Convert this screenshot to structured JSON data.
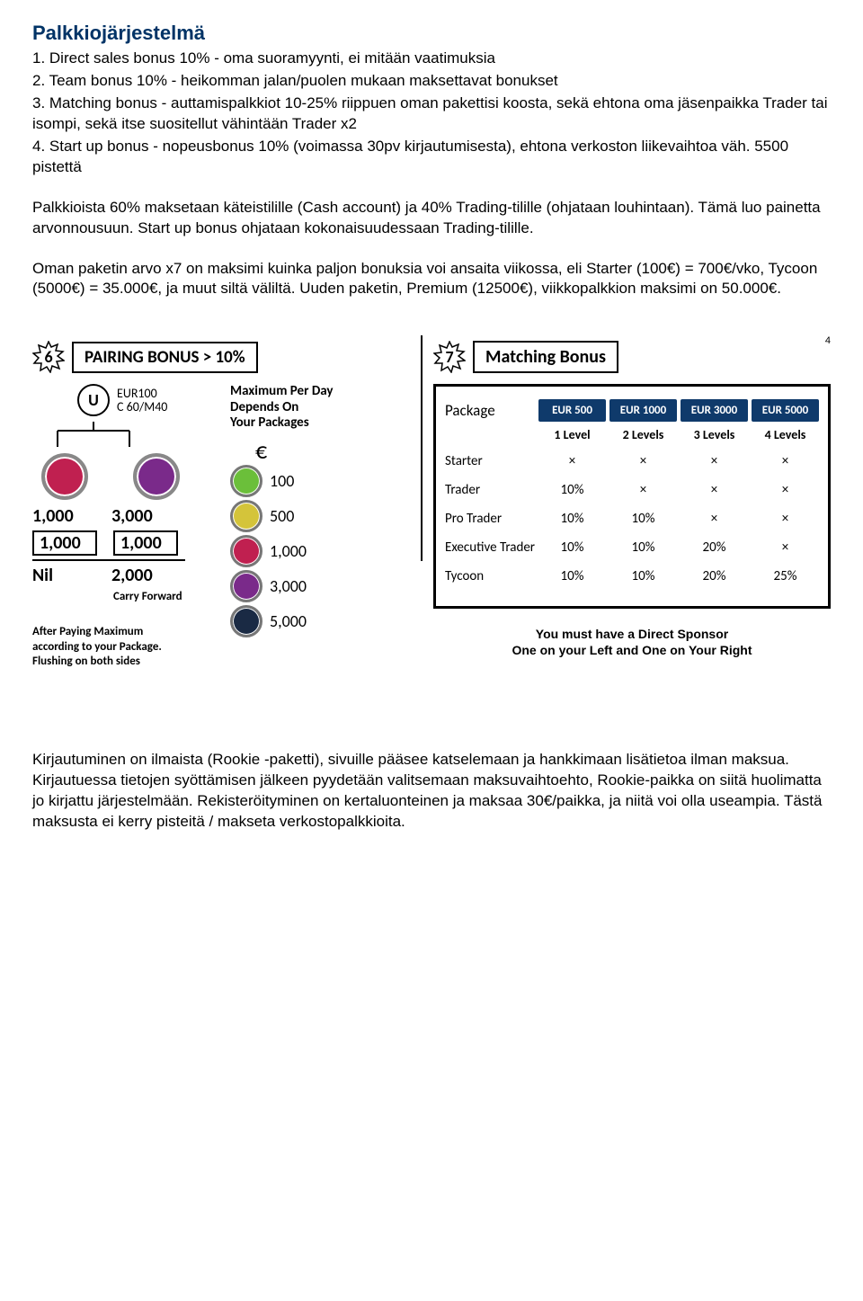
{
  "colors": {
    "accent": "#003366",
    "pill_bg": "#0f3a6b",
    "pill_fg": "#ffffff",
    "text": "#000000",
    "bg": "#ffffff",
    "coin_border": "#888888"
  },
  "title": "Palkkiojärjestelmä",
  "items": [
    "1. Direct sales bonus 10% - oma suoramyynti, ei mitään vaatimuksia",
    "2. Team bonus 10% - heikomman jalan/puolen mukaan maksettavat bonukset",
    "3. Matching bonus - auttamispalkkiot 10-25% riippuen oman pakettisi koosta, sekä ehtona oma jäsenpaikka Trader tai isompi, sekä itse suositellut vähintään Trader x2",
    "4. Start up bonus - nopeusbonus 10% (voimassa 30pv kirjautumisesta), ehtona verkoston liikevaihtoa väh. 5500 pistettä"
  ],
  "para1": "Palkkioista 60% maksetaan käteistilille (Cash account) ja 40% Trading-tilille (ohjataan louhintaan). Tämä luo painetta arvonnousuun. Start up bonus ohjataan kokonaisuudessaan Trading-tilille.",
  "para2": "Oman paketin arvo x7 on maksimi kuinka paljon bonuksia voi ansaita viikossa, eli Starter (100€) = 700€/vko, Tycoon (5000€) = 35.000€, ja muut siltä väliltä. Uuden paketin, Premium (12500€), viikkopalkkion maksimi on 50.000€.",
  "page_number": "4",
  "pairing": {
    "badge_num": "6",
    "title": "PAIRING BONUS > 10%",
    "u_label": "U",
    "u_sub1": "EUR100",
    "u_sub2": "C 60/M40",
    "left_coin_bg": "#c02050",
    "right_coin_bg": "#7a2a8a",
    "grid": {
      "r1c1": "1,000",
      "r1c2": "3,000",
      "r2c1": "1,000",
      "r2c2": "1,000",
      "r3c1": "Nil",
      "r3c2": "2,000",
      "carry": "Carry Forward"
    },
    "after_note_l1": "After Paying Maximum",
    "after_note_l2": "according to your Package.",
    "after_note_l3": "Flushing on both sides",
    "max_title_l1": "Maximum Per Day",
    "max_title_l2": "Depends On",
    "max_title_l3": "Your Packages",
    "euro_sign": "€",
    "packages": [
      {
        "amount": "100",
        "bg": "#6bbf3a"
      },
      {
        "amount": "500",
        "bg": "#d4c43a"
      },
      {
        "amount": "1,000",
        "bg": "#c02050"
      },
      {
        "amount": "3,000",
        "bg": "#7a2a8a"
      },
      {
        "amount": "5,000",
        "bg": "#1a2a44"
      }
    ]
  },
  "matching": {
    "badge_num": "7",
    "title": "Matching Bonus",
    "package_label": "Package",
    "headers": [
      "EUR 500",
      "EUR 1000",
      "EUR 3000",
      "EUR 5000"
    ],
    "levels": [
      "1 Level",
      "2 Levels",
      "3 Levels",
      "4 Levels"
    ],
    "rows": [
      {
        "label": "Starter",
        "cells": [
          "×",
          "×",
          "×",
          "×"
        ]
      },
      {
        "label": "Trader",
        "cells": [
          "10%",
          "×",
          "×",
          "×"
        ]
      },
      {
        "label": "Pro Trader",
        "cells": [
          "10%",
          "10%",
          "×",
          "×"
        ]
      },
      {
        "label": "Executive Trader",
        "cells": [
          "10%",
          "10%",
          "20%",
          "×"
        ]
      },
      {
        "label": "Tycoon",
        "cells": [
          "10%",
          "10%",
          "20%",
          "25%"
        ]
      }
    ],
    "note_l1": "You must have a Direct Sponsor",
    "note_l2": "One on your Left and One on Your Right"
  },
  "para3": "Kirjautuminen on ilmaista (Rookie -paketti), sivuille pääsee katselemaan ja hankkimaan lisätietoa ilman maksua. Kirjautuessa tietojen syöttämisen jälkeen pyydetään valitsemaan maksuvaihtoehto, Rookie-paikka on siitä huolimatta jo kirjattu järjestelmään. Rekisteröityminen on kertaluonteinen ja maksaa 30€/paikka, ja niitä voi olla useampia. Tästä maksusta ei kerry pisteitä / makseta verkostopalkkioita."
}
